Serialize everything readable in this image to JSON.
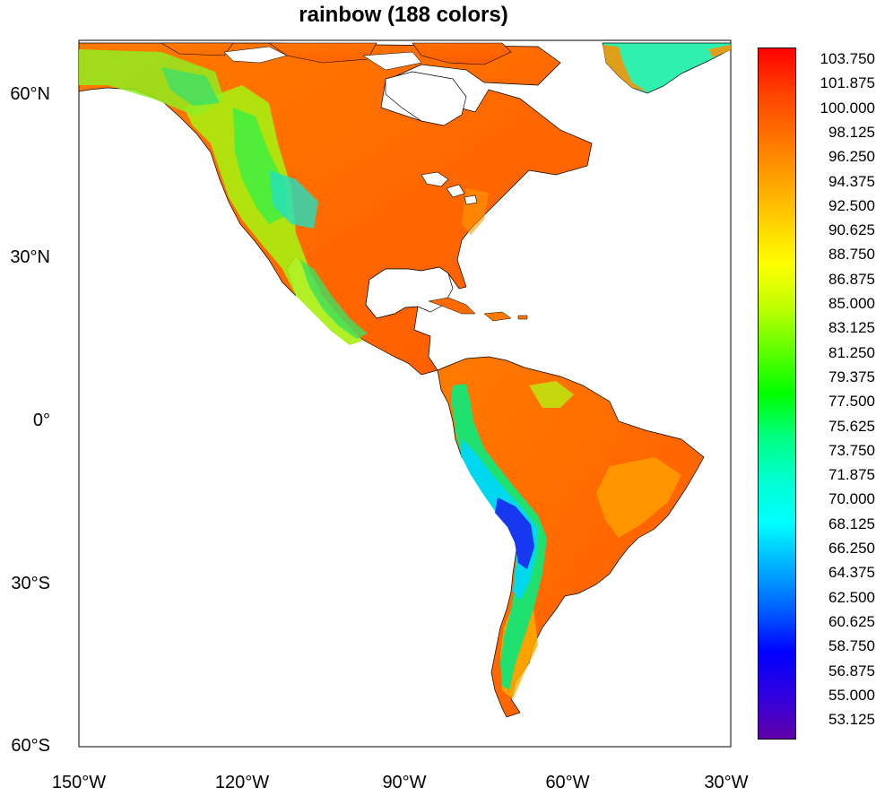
{
  "title": "rainbow (188 colors)",
  "lat_labels": [
    "60°N",
    "30°N",
    "0°",
    "30°S",
    "60°S"
  ],
  "lon_labels": [
    "150°W",
    "120°W",
    "90°W",
    "60°W",
    "30°W"
  ],
  "colorbar": {
    "labels": [
      "103.750",
      "101.875",
      "100.000",
      "98.125",
      "96.250",
      "94.375",
      "92.500",
      "90.625",
      "88.750",
      "86.875",
      "85.000",
      "83.125",
      "81.250",
      "79.375",
      "77.500",
      "75.625",
      "73.750",
      "71.875",
      "70.000",
      "68.125",
      "66.250",
      "64.375",
      "62.500",
      "60.625",
      "58.750",
      "56.875",
      "55.000",
      "53.125"
    ],
    "gradient_colors": [
      "#ff0000",
      "#ff4000",
      "#ff7000",
      "#ffa000",
      "#ffd000",
      "#ffff00",
      "#c0ff00",
      "#60ff00",
      "#00ff00",
      "#00ff80",
      "#00ffd0",
      "#00ffff",
      "#00b0ff",
      "#0060ff",
      "#0000ff",
      "#3000e0",
      "#6000a8"
    ]
  },
  "legend_colors": {
    "high": "#ff6a00",
    "mid": "#c8f000",
    "low": "#1040ff"
  }
}
